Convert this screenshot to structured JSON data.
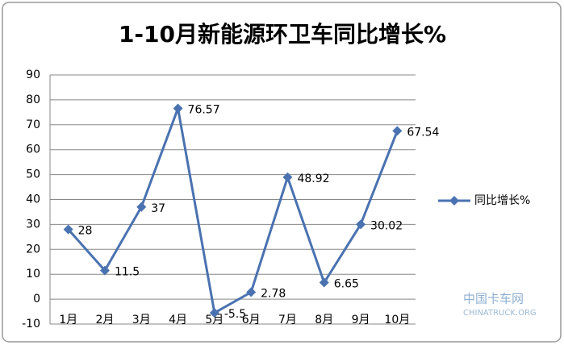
{
  "chart_data": {
    "type": "line",
    "title": "1-10月新能源环卫车同比增长%",
    "categories": [
      "1月",
      "2月",
      "3月",
      "4月",
      "5月",
      "6月",
      "7月",
      "8月",
      "9月",
      "10月"
    ],
    "series": [
      {
        "name": "同比增长%",
        "color": "#4a72b0",
        "values": [
          28,
          11.5,
          37,
          76.57,
          -5.5,
          2.78,
          48.92,
          6.65,
          30.02,
          67.54
        ]
      }
    ],
    "ylim": [
      -10,
      90
    ],
    "yticks": [
      -10,
      0,
      10,
      20,
      30,
      40,
      50,
      60,
      70,
      80,
      90
    ],
    "grid": true,
    "legend": "right",
    "watermark": [
      "中国卡车网",
      "CHINATRUCK.ORG"
    ]
  }
}
